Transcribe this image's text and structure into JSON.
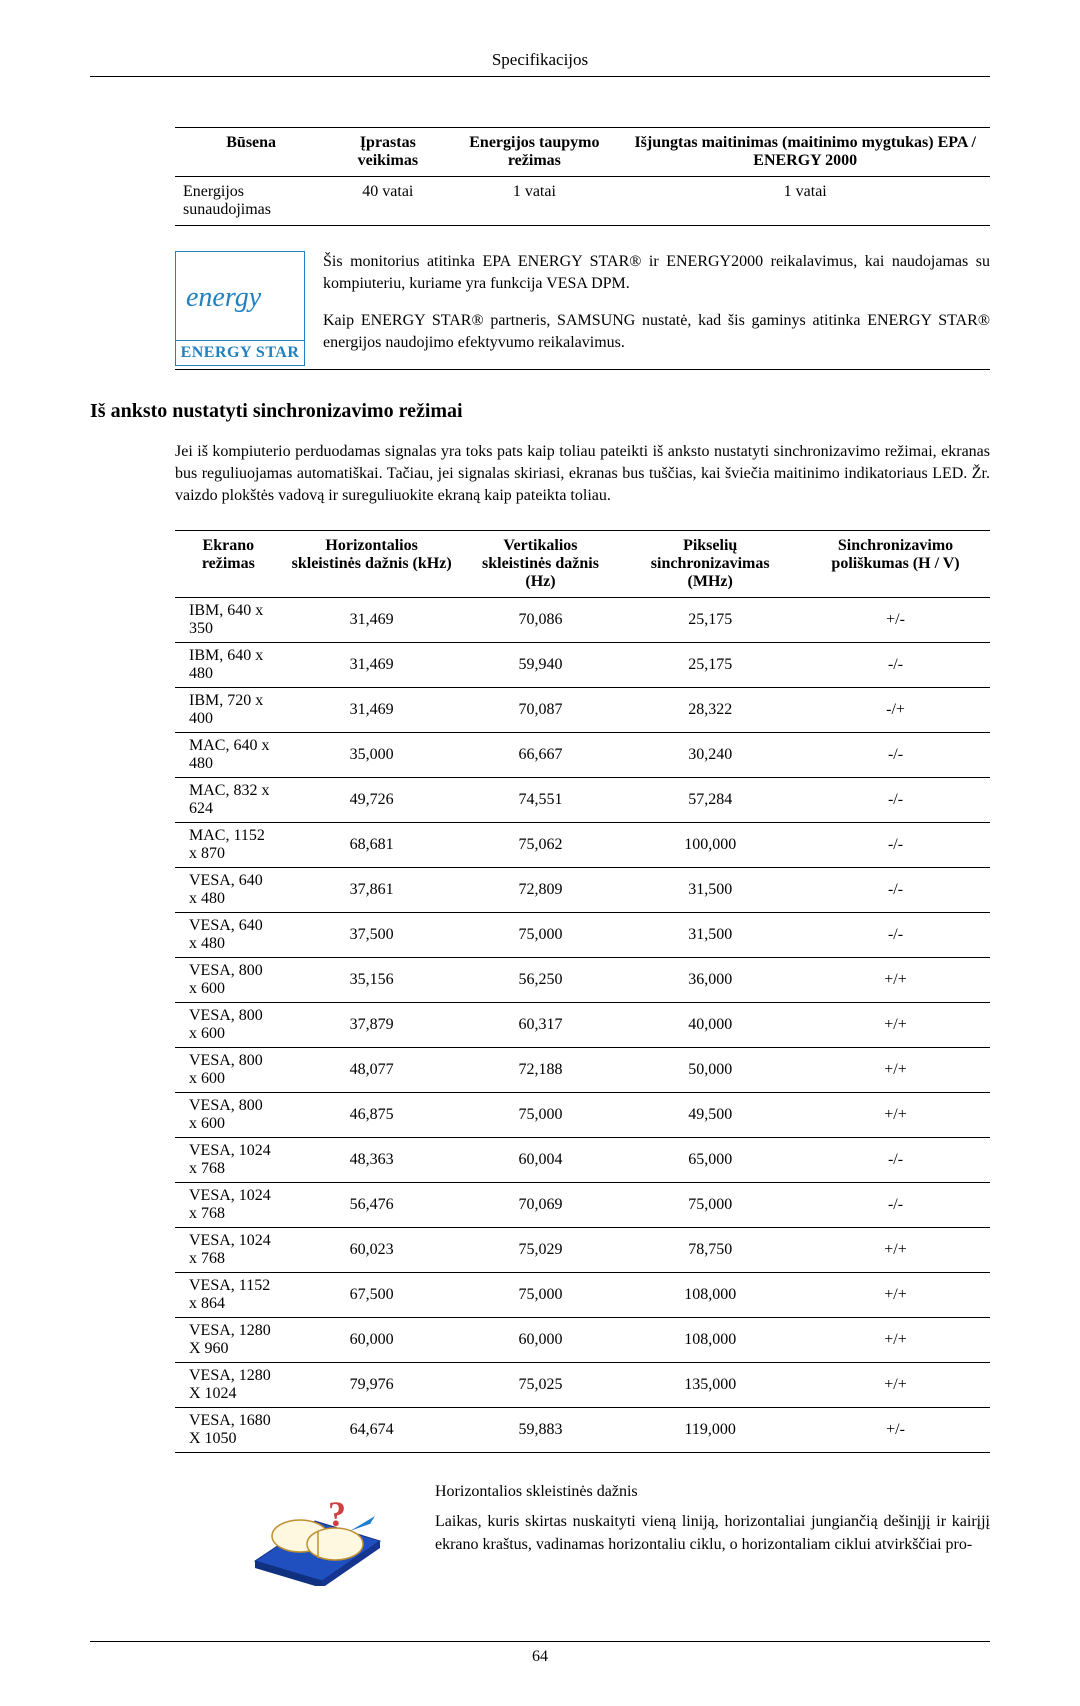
{
  "header": {
    "title": "Specifikacijos"
  },
  "powerTable": {
    "headers": {
      "state": "Būsena",
      "normal": "Įprastas veikimas",
      "saving": "Energijos taupymo režimas",
      "off": "Išjungtas maitinimas (maitinimo mygtukas) EPA / ENERGY 2000"
    },
    "row": {
      "label": "Energijos sunaudojimas",
      "normal": "40 vatai",
      "saving": "1 vatai",
      "off": "1 vatai"
    }
  },
  "energyStar": {
    "logoScript": "energy",
    "logoLabel": "ENERGY STAR",
    "para1": "Šis monitorius atitinka EPA ENERGY STAR® ir ENERGY2000 reikalavimus, kai naudojamas su kompiuteriu, kuriame yra funkcija VESA DPM.",
    "para2": "Kaip ENERGY STAR® partneris, SAMSUNG nustatė, kad šis gaminys atitinka ENERGY STAR® energijos naudojimo efektyvumo reikalavimus."
  },
  "section": {
    "heading": "Iš anksto nustatyti sinchronizavimo režimai",
    "intro": "Jei iš kompiuterio perduodamas signalas yra toks pats kaip toliau pateikti iš anksto nustatyti sinchronizavimo režimai, ekranas bus reguliuojamas automatiškai. Tačiau, jei signalas skiriasi, ekranas bus tuščias, kai šviečia maitinimo indikatoriaus LED. Žr. vaizdo plokštės vadovą ir sureguliuokite ekraną kaip pateikta toliau."
  },
  "modesTable": {
    "headers": {
      "mode": "Ekrano režimas",
      "hfreq": "Horizontalios skleistinės dažnis (kHz)",
      "vfreq": "Vertikalios skleistinės dažnis (Hz)",
      "pixel": "Pikselių sinchronizavimas (MHz)",
      "sync": "Sinchronizavimo poliškumas (H / V)"
    },
    "rows": [
      {
        "mode": "IBM, 640 x 350",
        "h": "31,469",
        "v": "70,086",
        "p": "25,175",
        "s": "+/-"
      },
      {
        "mode": "IBM, 640 x 480",
        "h": "31,469",
        "v": "59,940",
        "p": "25,175",
        "s": "-/-"
      },
      {
        "mode": "IBM, 720 x 400",
        "h": "31,469",
        "v": "70,087",
        "p": "28,322",
        "s": "-/+"
      },
      {
        "mode": "MAC, 640 x 480",
        "h": "35,000",
        "v": "66,667",
        "p": "30,240",
        "s": "-/-"
      },
      {
        "mode": "MAC, 832 x 624",
        "h": "49,726",
        "v": "74,551",
        "p": "57,284",
        "s": "-/-"
      },
      {
        "mode": "MAC, 1152 x 870",
        "h": "68,681",
        "v": "75,062",
        "p": "100,000",
        "s": "-/-"
      },
      {
        "mode": "VESA, 640 x 480",
        "h": "37,861",
        "v": "72,809",
        "p": "31,500",
        "s": "-/-"
      },
      {
        "mode": "VESA, 640 x 480",
        "h": "37,500",
        "v": "75,000",
        "p": "31,500",
        "s": "-/-"
      },
      {
        "mode": "VESA, 800 x 600",
        "h": "35,156",
        "v": "56,250",
        "p": "36,000",
        "s": "+/+"
      },
      {
        "mode": "VESA, 800 x 600",
        "h": "37,879",
        "v": "60,317",
        "p": "40,000",
        "s": "+/+"
      },
      {
        "mode": "VESA, 800 x 600",
        "h": "48,077",
        "v": "72,188",
        "p": "50,000",
        "s": "+/+"
      },
      {
        "mode": "VESA, 800 x 600",
        "h": "46,875",
        "v": "75,000",
        "p": "49,500",
        "s": "+/+"
      },
      {
        "mode": "VESA, 1024 x 768",
        "h": "48,363",
        "v": "60,004",
        "p": "65,000",
        "s": "-/-"
      },
      {
        "mode": "VESA, 1024 x 768",
        "h": "56,476",
        "v": "70,069",
        "p": "75,000",
        "s": "-/-"
      },
      {
        "mode": "VESA, 1024 x 768",
        "h": "60,023",
        "v": "75,029",
        "p": "78,750",
        "s": "+/+"
      },
      {
        "mode": "VESA, 1152 x 864",
        "h": "67,500",
        "v": "75,000",
        "p": "108,000",
        "s": "+/+"
      },
      {
        "mode": "VESA, 1280 X 960",
        "h": "60,000",
        "v": "60,000",
        "p": "108,000",
        "s": "+/+"
      },
      {
        "mode": "VESA, 1280 X 1024",
        "h": "79,976",
        "v": "75,025",
        "p": "135,000",
        "s": "+/+"
      },
      {
        "mode": "VESA, 1680 X 1050",
        "h": "64,674",
        "v": "59,883",
        "p": "119,000",
        "s": "+/-"
      }
    ]
  },
  "footnote": {
    "title": "Horizontalios skleistinės dažnis",
    "body": "Laikas, kuris skirtas nuskaityti vieną liniją, horizontaliai jungiančią dešinįjį ir kairįjį ekrano kraštus, vadinamas horizontaliu ciklu, o horizontaliam ciklui atvirkščiai pro-"
  },
  "footer": {
    "pageNumber": "64"
  },
  "colors": {
    "energyBlue": "#2080c0"
  }
}
